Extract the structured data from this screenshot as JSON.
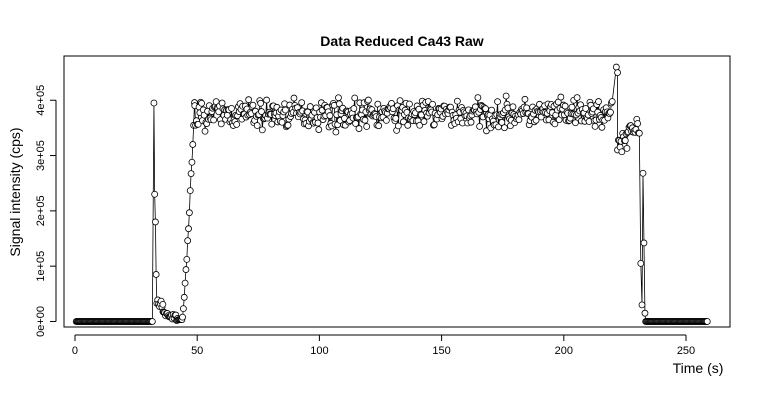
{
  "chart_data": {
    "type": "scatter",
    "title": "Data Reduced Ca43 Raw",
    "xlabel": "Time (s)",
    "ylabel": "Signal intensity (cps)",
    "xlim": [
      -4.5,
      268
    ],
    "ylim": [
      -10000,
      480000
    ],
    "x_ticks": [
      0,
      50,
      100,
      150,
      200,
      250
    ],
    "x_tick_labels": [
      "0",
      "50",
      "100",
      "150",
      "200",
      "250"
    ],
    "y_ticks": [
      0,
      100000,
      200000,
      300000,
      400000
    ],
    "y_tick_labels": [
      "0e+00",
      "1e+05",
      "2e+05",
      "3e+05",
      "4e+05"
    ],
    "grid": false,
    "legend": "none",
    "series": [
      {
        "style": "line+open-circle",
        "x_start": 0.5,
        "x_step": 0.35,
        "segments": [
          {
            "x_range": [
              0.5,
              32.0
            ],
            "level": 0,
            "noise": 0
          },
          {
            "x": 32.3,
            "y": 395000
          },
          {
            "x": 32.6,
            "y": 230000
          },
          {
            "x": 32.9,
            "y": 180000
          },
          {
            "x": 33.2,
            "y": 85000
          },
          {
            "x_range": [
              33.5,
              36.0
            ],
            "level": 28000,
            "noise": 10000
          },
          {
            "x_range": [
              36.0,
              42.0
            ],
            "level": 15000,
            "noise": 7000,
            "decay_to": 6000
          },
          {
            "x_range": [
              42.0,
              44.0
            ],
            "level": 3000,
            "noise": 2000
          },
          {
            "x_range": [
              44.0,
              49.0
            ],
            "rise_to": 400000
          },
          {
            "x_range": [
              49.0,
              220.0
            ],
            "level": 375000,
            "noise": 28000
          },
          {
            "x": 221.5,
            "y": 460000
          },
          {
            "x": 222.0,
            "y": 450000
          },
          {
            "x_range": [
              222.0,
              226.0
            ],
            "level": 320000,
            "noise": 25000
          },
          {
            "x_range": [
              226.0,
              231.0
            ],
            "level": 350000,
            "noise": 20000
          },
          {
            "x": 231.5,
            "y": 105000
          },
          {
            "x": 232.0,
            "y": 30000
          },
          {
            "x": 232.4,
            "y": 268000
          },
          {
            "x": 232.8,
            "y": 142000
          },
          {
            "x": 233.2,
            "y": 15000
          },
          {
            "x_range": [
              233.5,
              259.0
            ],
            "level": 0,
            "noise": 0
          }
        ]
      }
    ]
  }
}
